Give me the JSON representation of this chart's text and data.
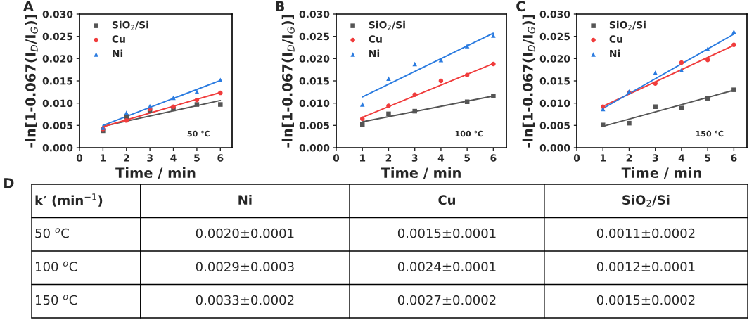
{
  "chart_data": [
    {
      "type": "scatter",
      "title": "A",
      "xlabel": "Time / min",
      "ylabel": "-ln[1-0.067(I$_{D}$/I$_{G}$)]",
      "x": [
        1,
        2,
        3,
        4,
        5,
        6
      ],
      "xlim": [
        0,
        6.5
      ],
      "xticks": [
        0,
        1,
        2,
        3,
        4,
        5,
        6
      ],
      "ylim": [
        0,
        0.03
      ],
      "yticks": [
        {
          "value": 0,
          "label": "0.000"
        },
        {
          "value": 0.005,
          "label": "0.005"
        },
        {
          "value": 0.01,
          "label": "0.010"
        },
        {
          "value": 0.015,
          "label": "0.015"
        },
        {
          "value": 0.02,
          "label": "0.020"
        },
        {
          "value": 0.025,
          "label": "0.025"
        },
        {
          "value": 0.03,
          "label": "0.030"
        }
      ],
      "legend": "top left",
      "grid": false,
      "annotations": [
        "50 ℃"
      ],
      "series": [
        {
          "name": "SiO$_{2}$/Si",
          "color": "#555555",
          "marker": "square",
          "values": [
            0.0038,
            0.007,
            0.0083,
            0.0087,
            0.0097,
            0.0097
          ]
        },
        {
          "name": "Cu",
          "color": "#f03c3c",
          "marker": "circle",
          "values": [
            0.0042,
            0.0061,
            0.0087,
            0.0092,
            0.0107,
            0.0123
          ]
        },
        {
          "name": "Ni",
          "color": "#2a7be0",
          "marker": "triangle",
          "values": [
            0.0045,
            0.0078,
            0.0093,
            0.0112,
            0.0126,
            0.0152
          ]
        },
        {
          "type": "line",
          "color": "#555555",
          "values": [
            0.0048,
            null,
            null,
            null,
            null,
            0.0106
          ]
        },
        {
          "type": "line",
          "color": "#f03c3c",
          "values": [
            0.0047,
            null,
            null,
            null,
            null,
            0.0124
          ]
        },
        {
          "type": "line",
          "color": "#2a7be0",
          "values": [
            0.005,
            null,
            null,
            null,
            null,
            0.0151
          ]
        }
      ]
    },
    {
      "type": "scatter",
      "title": "B",
      "xlabel": "Time / min",
      "ylabel": "-ln[1-0.067(I$_{D}$/I$_{G}$)]",
      "x": [
        1,
        2,
        3,
        4,
        5,
        6
      ],
      "xlim": [
        0,
        6.5
      ],
      "xticks": [
        0,
        1,
        2,
        3,
        4,
        5,
        6
      ],
      "ylim": [
        0,
        0.03
      ],
      "yticks": [
        {
          "value": 0,
          "label": "0.000"
        },
        {
          "value": 0.005,
          "label": "0.005"
        },
        {
          "value": 0.01,
          "label": "0.010"
        },
        {
          "value": 0.015,
          "label": "0.015"
        },
        {
          "value": 0.02,
          "label": "0.020"
        },
        {
          "value": 0.025,
          "label": "0.025"
        },
        {
          "value": 0.03,
          "label": "0.030"
        }
      ],
      "legend": "top left",
      "grid": false,
      "annotations": [
        "100 ℃"
      ],
      "series": [
        {
          "name": "SiO$_{2}$/Si",
          "color": "#555555",
          "marker": "square",
          "values": [
            0.0052,
            0.0076,
            0.0082,
            null,
            0.0103,
            0.0116
          ]
        },
        {
          "name": "Cu",
          "color": "#f03c3c",
          "marker": "circle",
          "values": [
            0.0065,
            0.0094,
            0.0119,
            0.015,
            0.0163,
            0.0188
          ]
        },
        {
          "name": "Ni",
          "color": "#2a7be0",
          "marker": "triangle",
          "values": [
            0.0097,
            0.0155,
            0.0188,
            0.0197,
            0.0228,
            0.0252
          ]
        },
        {
          "type": "line",
          "color": "#555555",
          "values": [
            0.0058,
            null,
            null,
            null,
            null,
            0.0116
          ]
        },
        {
          "type": "line",
          "color": "#f03c3c",
          "values": [
            0.0068,
            null,
            null,
            null,
            null,
            0.0189
          ]
        },
        {
          "type": "line",
          "color": "#2a7be0",
          "values": [
            0.0114,
            null,
            null,
            null,
            null,
            0.0257
          ]
        }
      ]
    },
    {
      "type": "scatter",
      "title": "C",
      "xlabel": "Time / min",
      "ylabel": "-ln[1-0.067(I$_{D}$/I$_{G}$)]",
      "x": [
        1,
        2,
        3,
        4,
        5,
        6
      ],
      "xlim": [
        0,
        6.5
      ],
      "xticks": [
        0,
        1,
        2,
        3,
        4,
        5,
        6
      ],
      "ylim": [
        0,
        0.03
      ],
      "yticks": [
        {
          "value": 0,
          "label": "0.000"
        },
        {
          "value": 0.005,
          "label": "0.005"
        },
        {
          "value": 0.01,
          "label": "0.010"
        },
        {
          "value": 0.015,
          "label": "0.015"
        },
        {
          "value": 0.02,
          "label": "0.020"
        },
        {
          "value": 0.025,
          "label": "0.025"
        },
        {
          "value": 0.03,
          "label": "0.030"
        }
      ],
      "legend": "top left",
      "grid": false,
      "annotations": [
        "150 ℃"
      ],
      "series": [
        {
          "name": "SiO$_{2}$/Si",
          "color": "#555555",
          "marker": "square",
          "values": [
            0.0051,
            0.0055,
            0.0092,
            0.0089,
            0.0111,
            0.013
          ]
        },
        {
          "name": "Cu",
          "color": "#f03c3c",
          "marker": "circle",
          "values": [
            0.0092,
            0.0124,
            0.0144,
            0.0191,
            0.0197,
            0.0231
          ]
        },
        {
          "name": "Ni",
          "color": "#2a7be0",
          "marker": "triangle",
          "values": [
            0.0087,
            0.0126,
            0.0168,
            0.0174,
            0.0222,
            0.026
          ]
        },
        {
          "type": "line",
          "color": "#555555",
          "values": [
            0.0048,
            null,
            null,
            null,
            null,
            0.0129
          ]
        },
        {
          "type": "line",
          "color": "#f03c3c",
          "values": [
            0.0093,
            null,
            null,
            null,
            null,
            0.023
          ]
        },
        {
          "type": "line",
          "color": "#2a7be0",
          "values": [
            0.0088,
            null,
            null,
            null,
            null,
            0.0255
          ]
        }
      ]
    },
    {
      "type": "other",
      "title": "D",
      "annotations": [
        "k’ (min$^{−1}$)",
        "Ni",
        "Cu",
        "SiO$_{2}$/Si",
        "50 $^{o}$C",
        "0.0020±0.0001",
        "0.0015±0.0001",
        "0.0011±0.0002",
        "100 $^{o}$C",
        "0.0029±0.0003",
        "0.0024±0.0001",
        "0.0012±0.0001",
        "150 $^{o}$C",
        "0.0033±0.0002",
        "0.0027±0.0002",
        "0.0015±0.0002"
      ]
    }
  ]
}
